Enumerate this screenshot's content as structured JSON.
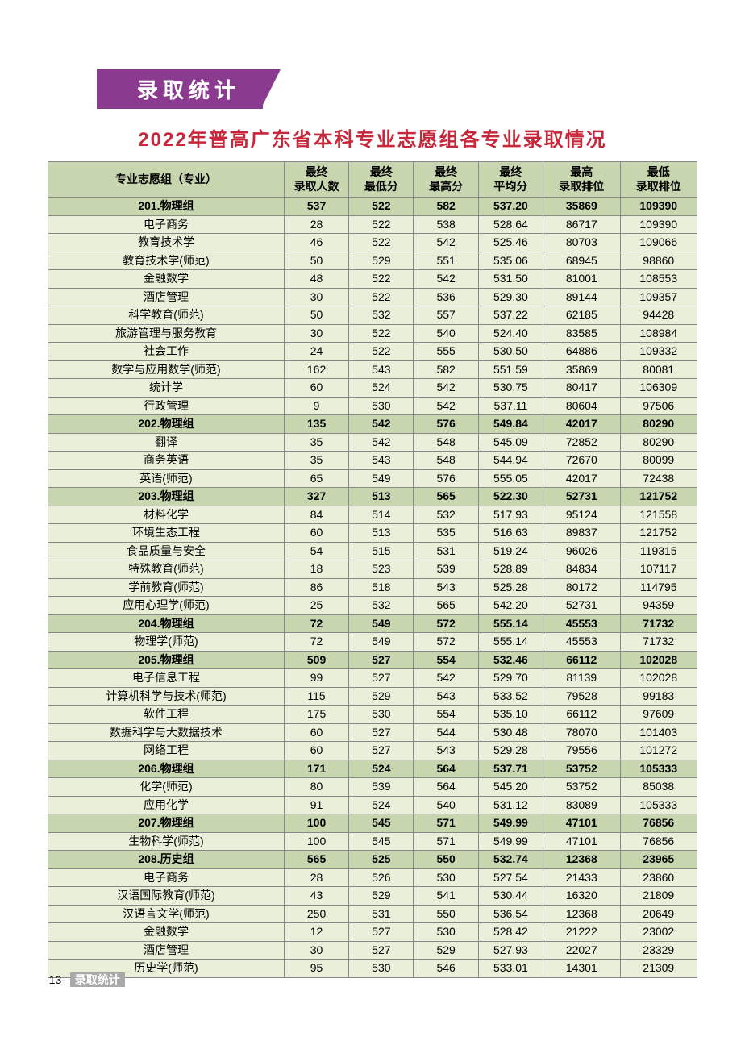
{
  "banner": "录取统计",
  "title": "2022年普高广东省本科专业志愿组各专业录取情况",
  "title_color": "#c7273a",
  "columns": [
    "专业志愿组（专业）",
    "最终\n录取人数",
    "最终\n最低分",
    "最终\n最高分",
    "最终\n平均分",
    "最高\n录取排位",
    "最低\n录取排位"
  ],
  "header_bg": "#c8d6b0",
  "row_bg": "#e9efd8",
  "border_color": "#888888",
  "rows": [
    {
      "g": true,
      "c": [
        "201.物理组",
        "537",
        "522",
        "582",
        "537.20",
        "35869",
        "109390"
      ]
    },
    {
      "c": [
        "电子商务",
        "28",
        "522",
        "538",
        "528.64",
        "86717",
        "109390"
      ]
    },
    {
      "c": [
        "教育技术学",
        "46",
        "522",
        "542",
        "525.46",
        "80703",
        "109066"
      ]
    },
    {
      "c": [
        "教育技术学(师范)",
        "50",
        "529",
        "551",
        "535.06",
        "68945",
        "98860"
      ]
    },
    {
      "c": [
        "金融数学",
        "48",
        "522",
        "542",
        "531.50",
        "81001",
        "108553"
      ]
    },
    {
      "c": [
        "酒店管理",
        "30",
        "522",
        "536",
        "529.30",
        "89144",
        "109357"
      ]
    },
    {
      "c": [
        "科学教育(师范)",
        "50",
        "532",
        "557",
        "537.22",
        "62185",
        "94428"
      ]
    },
    {
      "c": [
        "旅游管理与服务教育",
        "30",
        "522",
        "540",
        "524.40",
        "83585",
        "108984"
      ]
    },
    {
      "c": [
        "社会工作",
        "24",
        "522",
        "555",
        "530.50",
        "64886",
        "109332"
      ]
    },
    {
      "c": [
        "数学与应用数学(师范)",
        "162",
        "543",
        "582",
        "551.59",
        "35869",
        "80081"
      ]
    },
    {
      "c": [
        "统计学",
        "60",
        "524",
        "542",
        "530.75",
        "80417",
        "106309"
      ]
    },
    {
      "c": [
        "行政管理",
        "9",
        "530",
        "542",
        "537.11",
        "80604",
        "97506"
      ]
    },
    {
      "g": true,
      "c": [
        "202.物理组",
        "135",
        "542",
        "576",
        "549.84",
        "42017",
        "80290"
      ]
    },
    {
      "c": [
        "翻译",
        "35",
        "542",
        "548",
        "545.09",
        "72852",
        "80290"
      ]
    },
    {
      "c": [
        "商务英语",
        "35",
        "543",
        "548",
        "544.94",
        "72670",
        "80099"
      ]
    },
    {
      "c": [
        "英语(师范)",
        "65",
        "549",
        "576",
        "555.05",
        "42017",
        "72438"
      ]
    },
    {
      "g": true,
      "c": [
        "203.物理组",
        "327",
        "513",
        "565",
        "522.30",
        "52731",
        "121752"
      ]
    },
    {
      "c": [
        "材料化学",
        "84",
        "514",
        "532",
        "517.93",
        "95124",
        "121558"
      ]
    },
    {
      "c": [
        "环境生态工程",
        "60",
        "513",
        "535",
        "516.63",
        "89837",
        "121752"
      ]
    },
    {
      "c": [
        "食品质量与安全",
        "54",
        "515",
        "531",
        "519.24",
        "96026",
        "119315"
      ]
    },
    {
      "c": [
        "特殊教育(师范)",
        "18",
        "523",
        "539",
        "528.89",
        "84834",
        "107117"
      ]
    },
    {
      "c": [
        "学前教育(师范)",
        "86",
        "518",
        "543",
        "525.28",
        "80172",
        "114795"
      ]
    },
    {
      "c": [
        "应用心理学(师范)",
        "25",
        "532",
        "565",
        "542.20",
        "52731",
        "94359"
      ]
    },
    {
      "g": true,
      "c": [
        "204.物理组",
        "72",
        "549",
        "572",
        "555.14",
        "45553",
        "71732"
      ]
    },
    {
      "c": [
        "物理学(师范)",
        "72",
        "549",
        "572",
        "555.14",
        "45553",
        "71732"
      ]
    },
    {
      "g": true,
      "c": [
        "205.物理组",
        "509",
        "527",
        "554",
        "532.46",
        "66112",
        "102028"
      ]
    },
    {
      "c": [
        "电子信息工程",
        "99",
        "527",
        "542",
        "529.70",
        "81139",
        "102028"
      ]
    },
    {
      "c": [
        "计算机科学与技术(师范)",
        "115",
        "529",
        "543",
        "533.52",
        "79528",
        "99183"
      ]
    },
    {
      "c": [
        "软件工程",
        "175",
        "530",
        "554",
        "535.10",
        "66112",
        "97609"
      ]
    },
    {
      "c": [
        "数据科学与大数据技术",
        "60",
        "527",
        "544",
        "530.48",
        "78070",
        "101403"
      ]
    },
    {
      "c": [
        "网络工程",
        "60",
        "527",
        "543",
        "529.28",
        "79556",
        "101272"
      ]
    },
    {
      "g": true,
      "c": [
        "206.物理组",
        "171",
        "524",
        "564",
        "537.71",
        "53752",
        "105333"
      ]
    },
    {
      "c": [
        "化学(师范)",
        "80",
        "539",
        "564",
        "545.20",
        "53752",
        "85038"
      ]
    },
    {
      "c": [
        "应用化学",
        "91",
        "524",
        "540",
        "531.12",
        "83089",
        "105333"
      ]
    },
    {
      "g": true,
      "c": [
        "207.物理组",
        "100",
        "545",
        "571",
        "549.99",
        "47101",
        "76856"
      ]
    },
    {
      "c": [
        "生物科学(师范)",
        "100",
        "545",
        "571",
        "549.99",
        "47101",
        "76856"
      ]
    },
    {
      "g": true,
      "c": [
        "208.历史组",
        "565",
        "525",
        "550",
        "532.74",
        "12368",
        "23965"
      ]
    },
    {
      "c": [
        "电子商务",
        "28",
        "526",
        "530",
        "527.54",
        "21433",
        "23860"
      ]
    },
    {
      "c": [
        "汉语国际教育(师范)",
        "43",
        "529",
        "541",
        "530.44",
        "16320",
        "21809"
      ]
    },
    {
      "c": [
        "汉语言文学(师范)",
        "250",
        "531",
        "550",
        "536.54",
        "12368",
        "20649"
      ]
    },
    {
      "c": [
        "金融数学",
        "12",
        "527",
        "530",
        "528.42",
        "21222",
        "23002"
      ]
    },
    {
      "c": [
        "酒店管理",
        "30",
        "527",
        "529",
        "527.93",
        "22027",
        "23329"
      ]
    },
    {
      "c": [
        "历史学(师范)",
        "95",
        "530",
        "546",
        "533.01",
        "14301",
        "21309"
      ]
    }
  ],
  "footer_page": "-13-",
  "footer_tag": "录取统计"
}
